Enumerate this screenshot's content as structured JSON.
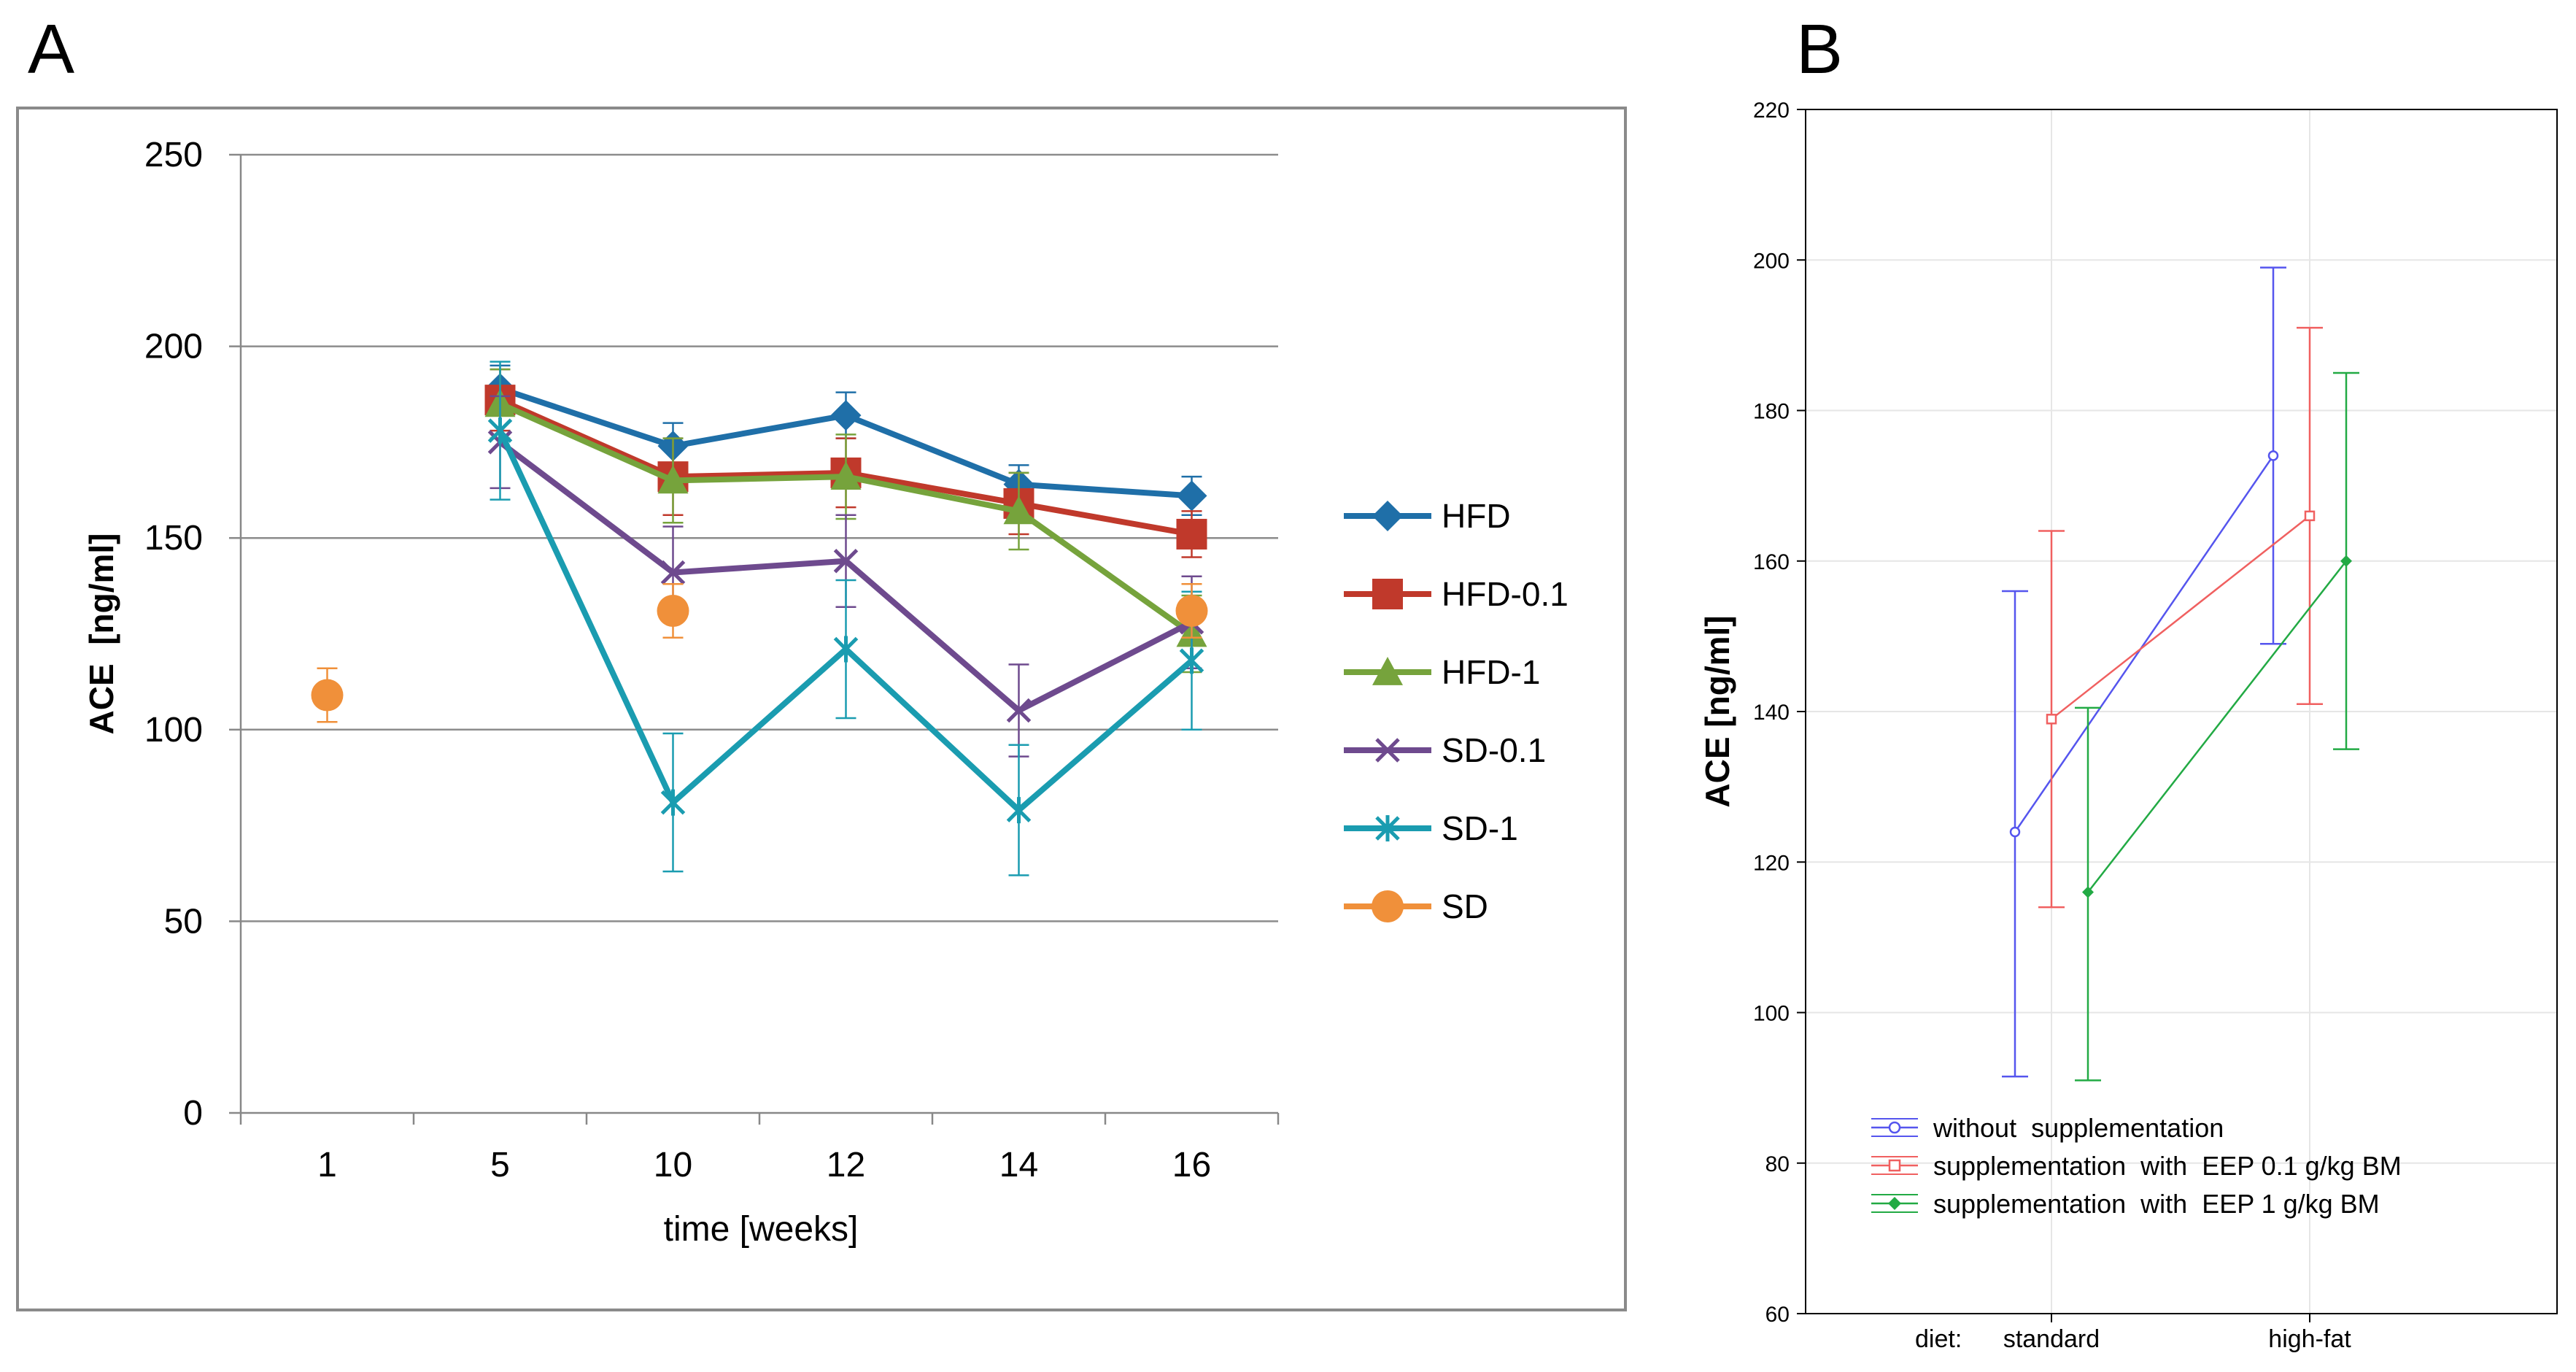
{
  "chart_data": [
    {
      "panel": "A",
      "type": "line",
      "xlabel": "time [weeks]",
      "ylabel": "ACE  [ng/ml]",
      "ylim": [
        0,
        250
      ],
      "yticks": [
        "0",
        "50",
        "100",
        "150",
        "200",
        "250"
      ],
      "categories": [
        "1",
        "5",
        "10",
        "12",
        "14",
        "16"
      ],
      "grid": "horizontal",
      "legend_position": "right",
      "series": [
        {
          "name": "HFD",
          "color": "#1f6fa8",
          "marker": "diamond",
          "values": [
            null,
            189,
            174,
            182,
            164,
            161
          ],
          "errors": [
            null,
            6,
            6,
            6,
            5,
            5
          ]
        },
        {
          "name": "HFD-0.1",
          "color": "#c0392b",
          "marker": "square",
          "values": [
            null,
            186,
            166,
            167,
            159,
            151
          ],
          "errors": [
            null,
            8,
            10,
            9,
            8,
            6
          ]
        },
        {
          "name": "HFD-1",
          "color": "#76a33c",
          "marker": "triangle",
          "values": [
            null,
            185,
            165,
            166,
            157,
            125
          ],
          "errors": [
            null,
            9,
            11,
            11,
            10,
            10
          ]
        },
        {
          "name": "SD-0.1",
          "color": "#6e4a8e",
          "marker": "x",
          "values": [
            null,
            175,
            141,
            144,
            105,
            128
          ],
          "errors": [
            null,
            12,
            12,
            12,
            12,
            12
          ]
        },
        {
          "name": "SD-1",
          "color": "#1a9cb0",
          "marker": "star",
          "values": [
            null,
            178,
            81,
            121,
            79,
            118
          ],
          "errors": [
            null,
            18,
            18,
            18,
            17,
            18
          ]
        },
        {
          "name": "SD",
          "color": "#f0903a",
          "marker": "circle",
          "values": [
            109,
            null,
            131,
            null,
            null,
            131
          ],
          "errors": [
            7,
            null,
            7,
            null,
            null,
            7
          ]
        }
      ]
    },
    {
      "panel": "B",
      "type": "line",
      "xlabel": "diet:",
      "ylabel": "ACE [ng/ml]",
      "ylim": [
        60,
        220
      ],
      "yticks": [
        "60",
        "80",
        "100",
        "120",
        "140",
        "160",
        "180",
        "200",
        "220"
      ],
      "categories": [
        "standard",
        "high-fat"
      ],
      "grid": "both",
      "legend_position": "bottom-left",
      "series": [
        {
          "name": "without  supplementation",
          "color": "#5555ee",
          "marker": "circle",
          "values": [
            124,
            174
          ],
          "ci_low": [
            91.5,
            149
          ],
          "ci_high": [
            156,
            199
          ]
        },
        {
          "name": "supplementation  with  EEP 0.1 g/kg BM",
          "color": "#f06060",
          "marker": "square",
          "values": [
            139,
            166
          ],
          "ci_low": [
            114,
            141
          ],
          "ci_high": [
            164,
            191
          ]
        },
        {
          "name": "supplementation  with  EEP 1 g/kg BM",
          "color": "#22aa44",
          "marker": "diamond",
          "values": [
            116,
            160
          ],
          "ci_low": [
            91,
            135
          ],
          "ci_high": [
            140.5,
            185
          ]
        }
      ]
    }
  ]
}
